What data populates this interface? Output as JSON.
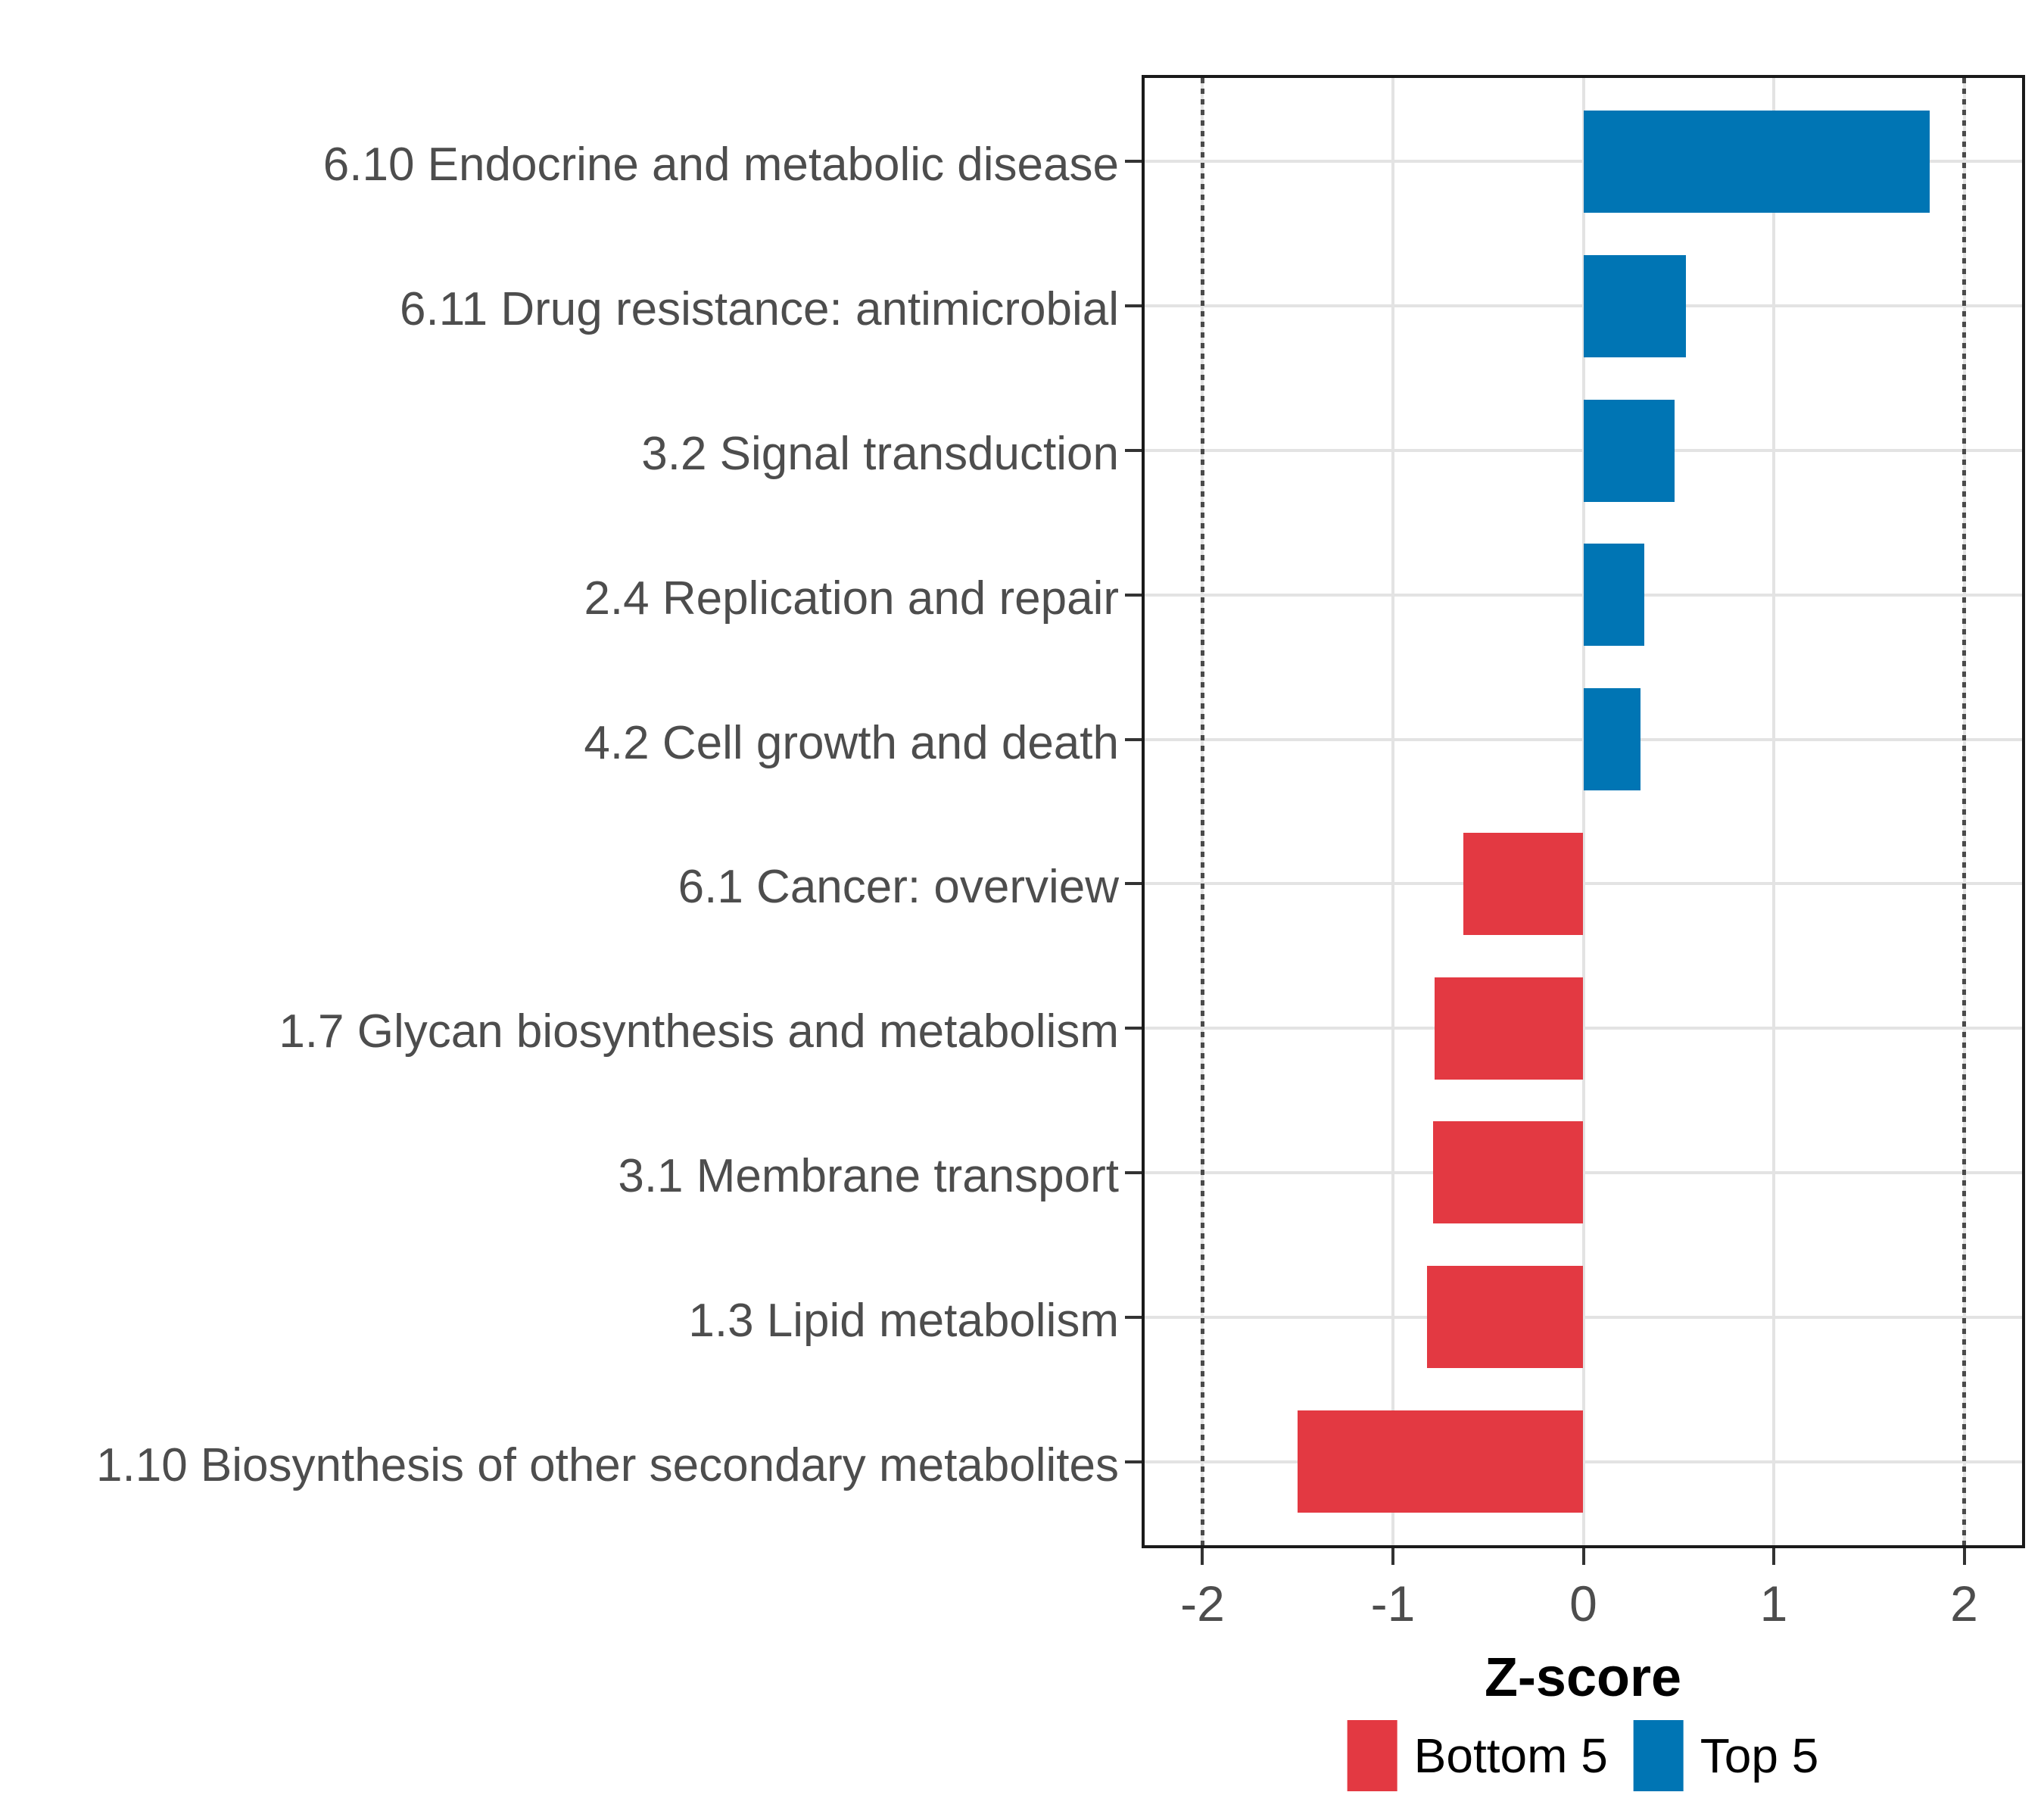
{
  "chart_data": {
    "type": "bar",
    "orientation": "horizontal",
    "title": "",
    "xlabel": "Z-score",
    "ylabel": "",
    "xlim": [
      -2.32,
      2.32
    ],
    "x_ticks": [
      -2,
      -1,
      0,
      1,
      2
    ],
    "x_tick_labels": [
      "-2",
      "-1",
      "0",
      "1",
      "2"
    ],
    "grid": true,
    "legend_position": "bottom",
    "reference_lines": [
      -2,
      2
    ],
    "reference_line_style": "dotted",
    "categories": [
      "6.10 Endocrine and metabolic disease",
      "6.11 Drug resistance: antimicrobial",
      "3.2 Signal transduction",
      "2.4 Replication and repair",
      "4.2 Cell growth and death",
      "6.1 Cancer: overview",
      "1.7 Glycan biosynthesis and metabolism",
      "3.1 Membrane transport",
      "1.3 Lipid metabolism",
      "1.10 Biosynthesis of other secondary metabolites"
    ],
    "values": [
      1.82,
      0.54,
      0.48,
      0.32,
      0.3,
      -0.63,
      -0.78,
      -0.79,
      -0.82,
      -1.5
    ],
    "groups": [
      "Top 5",
      "Top 5",
      "Top 5",
      "Top 5",
      "Top 5",
      "Bottom 5",
      "Bottom 5",
      "Bottom 5",
      "Bottom 5",
      "Bottom 5"
    ],
    "colors": {
      "Top 5": "#0075B4",
      "Bottom 5": "#E33942"
    },
    "legend": [
      {
        "label": "Bottom 5",
        "color": "#E33942"
      },
      {
        "label": "Top 5",
        "color": "#0075B4"
      }
    ]
  },
  "style": {
    "grid_color": "#e3e3e3",
    "panel_border_color": "#1a1a1a",
    "axis_text_color": "#4d4d4d",
    "background": "#ffffff"
  }
}
